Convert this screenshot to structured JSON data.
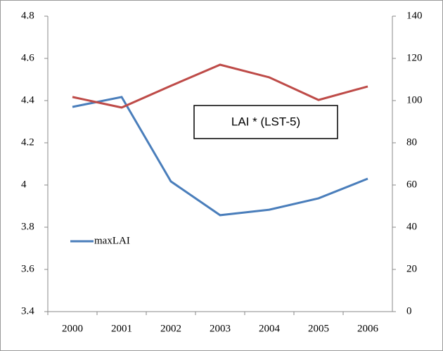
{
  "chart_data": {
    "type": "line",
    "annotation": "LAI * (LST-5)",
    "categories": [
      "2000",
      "2001",
      "2002",
      "2003",
      "2004",
      "2005",
      "2006"
    ],
    "series": [
      {
        "name": "maxLAI",
        "color": "#4a7ebb",
        "values": [
          4.37,
          4.417,
          4.017,
          3.857,
          3.883,
          3.937,
          4.03
        ]
      },
      {
        "color": "#be4b48",
        "axis": "y2",
        "values": [
          101.7,
          96.7,
          107,
          117,
          111,
          100.3,
          106.7
        ]
      }
    ],
    "ylim": [
      3.4,
      4.8
    ],
    "yticks": [
      3.4,
      3.6,
      3.8,
      4,
      4.2,
      4.4,
      4.6,
      4.8
    ],
    "y2lim": [
      0,
      140
    ],
    "y2ticks": [
      0,
      20,
      40,
      60,
      80,
      100,
      120,
      140
    ]
  }
}
